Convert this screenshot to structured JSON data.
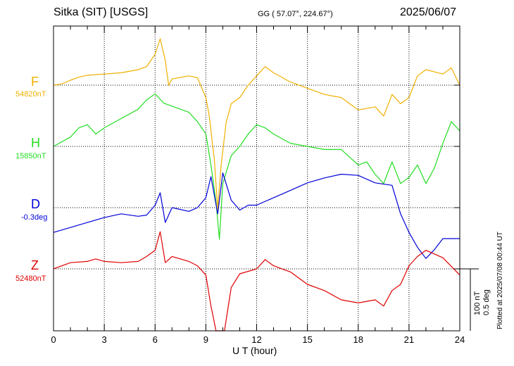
{
  "header": {
    "station": "Sitka (SIT)  [USGS]",
    "coords": "GG ( 57.07°, 224.67°)",
    "date": "2025/06/07"
  },
  "plotted_note": "Plotted at 2025/07/08 00:44 UT",
  "scale": {
    "nt": "100 nT",
    "deg": "0.5 deg"
  },
  "colors": {
    "F": "#f0b000",
    "H": "#22dd22",
    "D": "#0000d8",
    "Z": "#e00000"
  },
  "chart_data": {
    "type": "line",
    "title": "",
    "xlabel": "U T (hour)",
    "ylabel": "",
    "xlim": [
      0,
      24
    ],
    "grid": "dotted horizontal baselines and vertical lines every 3 hours",
    "x_ticks": [
      "0",
      "3",
      "6",
      "9",
      "12",
      "15",
      "18",
      "21",
      "24"
    ],
    "series": [
      {
        "name": "F",
        "base_label": "54820nT",
        "unit": "nT",
        "baseline": 54820,
        "points": [
          [
            0,
            54820
          ],
          [
            0.5,
            54822
          ],
          [
            1,
            54828
          ],
          [
            1.5,
            54833
          ],
          [
            2,
            54836
          ],
          [
            2.5,
            54837
          ],
          [
            3,
            54838
          ],
          [
            4,
            54840
          ],
          [
            5,
            54845
          ],
          [
            5.5,
            54850
          ],
          [
            6,
            54870
          ],
          [
            6.3,
            54895
          ],
          [
            6.6,
            54860
          ],
          [
            6.8,
            54820
          ],
          [
            7,
            54830
          ],
          [
            8,
            54835
          ],
          [
            8.5,
            54832
          ],
          [
            9,
            54800
          ],
          [
            9.2,
            54770
          ],
          [
            9.5,
            54700
          ],
          [
            9.7,
            54620
          ],
          [
            9.9,
            54690
          ],
          [
            10.2,
            54760
          ],
          [
            10.5,
            54790
          ],
          [
            11,
            54800
          ],
          [
            11.5,
            54820
          ],
          [
            12,
            54835
          ],
          [
            12.5,
            54850
          ],
          [
            13,
            54840
          ],
          [
            14,
            54825
          ],
          [
            15,
            54815
          ],
          [
            16,
            54805
          ],
          [
            17,
            54800
          ],
          [
            17.5,
            54790
          ],
          [
            18,
            54780
          ],
          [
            19,
            54785
          ],
          [
            19.5,
            54770
          ],
          [
            20,
            54805
          ],
          [
            20.5,
            54790
          ],
          [
            21,
            54800
          ],
          [
            21.5,
            54835
          ],
          [
            22,
            54845
          ],
          [
            23,
            54838
          ],
          [
            23.5,
            54848
          ],
          [
            24,
            54820
          ]
        ]
      },
      {
        "name": "H",
        "base_label": "15850nT",
        "unit": "nT",
        "baseline": 15850,
        "points": [
          [
            0,
            15850
          ],
          [
            1,
            15865
          ],
          [
            1.5,
            15880
          ],
          [
            2,
            15885
          ],
          [
            2.5,
            15870
          ],
          [
            3,
            15880
          ],
          [
            4,
            15895
          ],
          [
            5,
            15910
          ],
          [
            5.5,
            15925
          ],
          [
            6,
            15935
          ],
          [
            6.5,
            15920
          ],
          [
            7,
            15915
          ],
          [
            8,
            15905
          ],
          [
            8.5,
            15890
          ],
          [
            9,
            15870
          ],
          [
            9.3,
            15820
          ],
          [
            9.6,
            15760
          ],
          [
            9.8,
            15700
          ],
          [
            10,
            15790
          ],
          [
            10.5,
            15835
          ],
          [
            11,
            15850
          ],
          [
            11.5,
            15870
          ],
          [
            12,
            15885
          ],
          [
            12.5,
            15880
          ],
          [
            13,
            15870
          ],
          [
            14,
            15855
          ],
          [
            15,
            15850
          ],
          [
            16,
            15845
          ],
          [
            17,
            15845
          ],
          [
            18,
            15820
          ],
          [
            18.5,
            15825
          ],
          [
            19,
            15805
          ],
          [
            19.5,
            15790
          ],
          [
            20,
            15825
          ],
          [
            20.5,
            15790
          ],
          [
            21,
            15800
          ],
          [
            21.5,
            15820
          ],
          [
            22,
            15790
          ],
          [
            22.5,
            15815
          ],
          [
            23,
            15855
          ],
          [
            23.5,
            15890
          ],
          [
            24,
            15875
          ]
        ]
      },
      {
        "name": "D",
        "base_label": "-0.3deg",
        "unit": "deg",
        "baseline": -0.3,
        "points": [
          [
            0,
            -0.5
          ],
          [
            1,
            -0.46
          ],
          [
            2,
            -0.42
          ],
          [
            3,
            -0.38
          ],
          [
            4,
            -0.35
          ],
          [
            5,
            -0.37
          ],
          [
            5.5,
            -0.36
          ],
          [
            6,
            -0.28
          ],
          [
            6.3,
            -0.18
          ],
          [
            6.6,
            -0.42
          ],
          [
            7,
            -0.3
          ],
          [
            8,
            -0.33
          ],
          [
            8.5,
            -0.3
          ],
          [
            9,
            -0.22
          ],
          [
            9.3,
            -0.05
          ],
          [
            9.7,
            -0.35
          ],
          [
            10,
            -0.02
          ],
          [
            10.5,
            -0.24
          ],
          [
            11,
            -0.32
          ],
          [
            11.5,
            -0.28
          ],
          [
            12,
            -0.28
          ],
          [
            13,
            -0.22
          ],
          [
            14,
            -0.16
          ],
          [
            15,
            -0.1
          ],
          [
            16,
            -0.06
          ],
          [
            17,
            -0.03
          ],
          [
            18,
            -0.04
          ],
          [
            19,
            -0.1
          ],
          [
            20,
            -0.12
          ],
          [
            20.5,
            -0.35
          ],
          [
            21,
            -0.5
          ],
          [
            21.5,
            -0.62
          ],
          [
            22,
            -0.71
          ],
          [
            22.5,
            -0.64
          ],
          [
            23,
            -0.55
          ],
          [
            24,
            -0.55
          ]
        ]
      },
      {
        "name": "Z",
        "base_label": "52480nT",
        "unit": "nT",
        "baseline": 52480,
        "points": [
          [
            0,
            52480
          ],
          [
            1,
            52490
          ],
          [
            2,
            52492
          ],
          [
            2.5,
            52496
          ],
          [
            3,
            52492
          ],
          [
            4,
            52490
          ],
          [
            5,
            52492
          ],
          [
            5.5,
            52500
          ],
          [
            6,
            52510
          ],
          [
            6.3,
            52540
          ],
          [
            6.6,
            52490
          ],
          [
            7,
            52500
          ],
          [
            8,
            52492
          ],
          [
            8.5,
            52485
          ],
          [
            9,
            52470
          ],
          [
            9.3,
            52420
          ],
          [
            9.6,
            52340
          ],
          [
            9.8,
            52290
          ],
          [
            10.1,
            52380
          ],
          [
            10.5,
            52450
          ],
          [
            11,
            52472
          ],
          [
            12,
            52480
          ],
          [
            12.5,
            52495
          ],
          [
            13,
            52485
          ],
          [
            14,
            52475
          ],
          [
            15,
            52455
          ],
          [
            16,
            52445
          ],
          [
            17,
            52430
          ],
          [
            18,
            52425
          ],
          [
            19,
            52430
          ],
          [
            19.5,
            52420
          ],
          [
            20,
            52445
          ],
          [
            20.5,
            52455
          ],
          [
            21,
            52485
          ],
          [
            21.5,
            52500
          ],
          [
            22,
            52510
          ],
          [
            23,
            52498
          ],
          [
            24,
            52470
          ]
        ]
      }
    ]
  }
}
